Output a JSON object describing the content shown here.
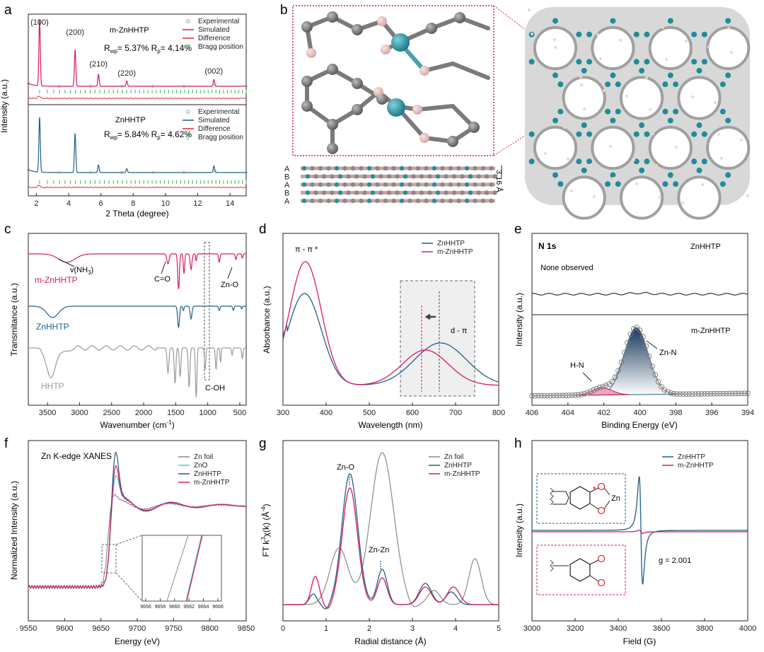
{
  "colors": {
    "pink": "#d81b60",
    "blue": "#1f5f8b",
    "gray": "#8a8a8a",
    "red": "#e8262a",
    "green": "#3cb44b",
    "cyan": "#56c3c6",
    "teal": "#2a8e9a",
    "black": "#222222"
  },
  "panels": {
    "a": {
      "letter": "a",
      "ylabel": "Intensity (a.u.)",
      "xlabel": "2 Theta (degree)",
      "xlim": [
        1.5,
        15
      ],
      "xticks": [
        "2",
        "4",
        "6",
        "8",
        "10",
        "12",
        "14"
      ],
      "top": {
        "name": "m-ZnHHTP",
        "rwp_text": "R",
        "rwp_sub": "wp",
        "rwp_val": "= 5.37% R",
        "rp_sub": "p",
        "rp_val": "= 4.14%",
        "peaks": [
          {
            "label": "(100)",
            "x": 2.2,
            "h": 1.0
          },
          {
            "label": "(200)",
            "x": 4.4,
            "h": 0.55
          },
          {
            "label": "(210)",
            "x": 5.85,
            "h": 0.18
          },
          {
            "label": "(220)",
            "x": 7.6,
            "h": 0.08
          },
          {
            "label": "(002)",
            "x": 13.0,
            "h": 0.1
          }
        ]
      },
      "bottom": {
        "name": "ZnHHTP",
        "rwp_text": "R",
        "rwp_sub": "wp",
        "rwp_val": "= 5.84% R",
        "rp_sub": "p",
        "rp_val": "= 4.62%",
        "peaks": [
          {
            "x": 2.2,
            "h": 1.0
          },
          {
            "x": 4.4,
            "h": 0.72
          },
          {
            "x": 5.85,
            "h": 0.14
          },
          {
            "x": 7.6,
            "h": 0.07
          },
          {
            "x": 13.0,
            "h": 0.12
          }
        ]
      },
      "legend": [
        "Experimental",
        "Simulated",
        "Difference",
        "Bragg position"
      ]
    },
    "b": {
      "letter": "b",
      "stack_labels": [
        "A",
        "B",
        "A",
        "B",
        "A"
      ],
      "spacing_label": "3.16 Å"
    },
    "c": {
      "letter": "c",
      "ylabel": "Transmitance (a.u.)",
      "xlabel": "Wavenumber (cm",
      "xlabel_sup": "-1",
      "xlabel_end": ")",
      "xticks": [
        "3500",
        "3000",
        "2500",
        "2000",
        "1500",
        "1000",
        "500"
      ],
      "series": [
        "m-ZnHHTP",
        "ZnHHTP",
        "HHTP"
      ],
      "annotations": [
        "v(NH",
        "3",
        ")",
        "C=O",
        "Zn-O",
        "C-OH"
      ]
    },
    "d": {
      "letter": "d",
      "ylabel": "Absorbance (a.u.)",
      "xlabel": "Wavelength (nm)",
      "xlim": [
        300,
        800
      ],
      "xticks": [
        "300",
        "400",
        "500",
        "600",
        "700",
        "800"
      ],
      "legend": [
        "ZnHHTP",
        "m-ZnHHTP"
      ],
      "annotations": [
        "π - π *",
        "d - π"
      ]
    },
    "e": {
      "letter": "e",
      "ylabel": "Intensity (a.u.)",
      "xlabel": "Binding Energy (eV)",
      "xlim": [
        406,
        394
      ],
      "xticks": [
        "406",
        "404",
        "402",
        "400",
        "398",
        "396",
        "394"
      ],
      "title": "N 1s",
      "top_name": "ZnHHTP",
      "none_text": "None observed",
      "bottom_name": "m-ZnHHTP",
      "peaks": [
        {
          "label": "Zn-N",
          "center": 400.2
        },
        {
          "label": "H-N",
          "center": 402.1
        }
      ]
    },
    "f": {
      "letter": "f",
      "ylabel": "Normalized Intensity (a.u.)",
      "xlabel": "Energy (eV)",
      "xlim": [
        9550,
        9850
      ],
      "xticks": [
        "9550",
        "9600",
        "9650",
        "9700",
        "9750",
        "9800",
        "9850"
      ],
      "title": "Zn K-edge XANES",
      "legend": [
        "Zn foil",
        "ZnO",
        "ZnHHTP",
        "m-ZnHHTP"
      ],
      "inset_ticks": [
        "9656",
        "9658",
        "9660",
        "9662",
        "9664",
        "9666"
      ]
    },
    "g": {
      "letter": "g",
      "ylabel": "FT k",
      "ylabel_sup": "3",
      "ylabel_mid": "χ(k) (Å",
      "ylabel_sup2": "-4",
      "ylabel_end": ")",
      "xlabel": "Radial distance (Å)",
      "xlim": [
        0,
        5
      ],
      "xticks": [
        "0",
        "1",
        "2",
        "3",
        "4",
        "5"
      ],
      "legend": [
        "Zn foil",
        "ZnHHTP",
        "m-ZnHHTP"
      ],
      "annotations": [
        "Zn-O",
        "Zn-Zn"
      ]
    },
    "h": {
      "letter": "h",
      "ylabel": "Intensity (a.u.)",
      "xlabel": "Field (G)",
      "xlim": [
        3000,
        4000
      ],
      "xticks": [
        "3000",
        "3200",
        "3400",
        "3600",
        "3800",
        "4000"
      ],
      "legend": [
        "ZnHHTP",
        "m-ZnHHTP"
      ],
      "g_label": "g = 2.001",
      "zn_label": "Zn"
    }
  },
  "chart_data": [
    {
      "panel": "a",
      "type": "line",
      "title": "",
      "xlabel": "2 Theta (degree)",
      "ylabel": "Intensity (a.u.)",
      "xlim": [
        1.5,
        15
      ],
      "series": [
        {
          "name": "m-ZnHHTP",
          "peaks_2theta": [
            2.2,
            4.4,
            5.85,
            7.6,
            13.0
          ],
          "rel_intensity": [
            1.0,
            0.55,
            0.18,
            0.08,
            0.1
          ]
        },
        {
          "name": "ZnHHTP",
          "peaks_2theta": [
            2.2,
            4.4,
            5.85,
            7.6,
            13.0
          ],
          "rel_intensity": [
            1.0,
            0.72,
            0.14,
            0.07,
            0.12
          ]
        }
      ]
    },
    {
      "panel": "c",
      "type": "line",
      "xlabel": "Wavenumber (cm-1)",
      "ylabel": "Transmitance (a.u.)",
      "xlim": [
        3800,
        400
      ],
      "series": [
        {
          "name": "m-ZnHHTP",
          "bands_cm-1": [
            3200,
            1620,
            1450,
            1260,
            600
          ]
        },
        {
          "name": "ZnHHTP",
          "bands_cm-1": [
            3450,
            1450,
            1260,
            600
          ]
        },
        {
          "name": "HHTP",
          "bands_cm-1": [
            3450,
            1620,
            1500,
            1250,
            1000
          ]
        }
      ]
    },
    {
      "panel": "d",
      "type": "line",
      "xlabel": "Wavelength (nm)",
      "ylabel": "Absorbance (a.u.)",
      "xlim": [
        300,
        800
      ],
      "series": [
        {
          "name": "ZnHHTP",
          "maxima_nm": [
            350,
            665
          ]
        },
        {
          "name": "m-ZnHHTP",
          "maxima_nm": [
            352,
            630
          ]
        }
      ]
    },
    {
      "panel": "e",
      "type": "line",
      "xlabel": "Binding Energy (eV)",
      "ylabel": "Intensity (a.u.)",
      "xlim": [
        406,
        394
      ],
      "series": [
        {
          "name": "m-ZnHHTP Zn-N",
          "center_eV": 400.2
        },
        {
          "name": "m-ZnHHTP H-N",
          "center_eV": 402.1
        }
      ]
    },
    {
      "panel": "f",
      "type": "line",
      "xlabel": "Energy (eV)",
      "ylabel": "Normalized Intensity (a.u.)",
      "xlim": [
        9550,
        9850
      ],
      "series": [
        {
          "name": "Zn foil"
        },
        {
          "name": "ZnO"
        },
        {
          "name": "ZnHHTP"
        },
        {
          "name": "m-ZnHHTP"
        }
      ],
      "edge_eV": 9662
    },
    {
      "panel": "g",
      "type": "line",
      "xlabel": "Radial distance (Å)",
      "ylabel": "FT k3χ(k) (Å-4)",
      "xlim": [
        0,
        5
      ],
      "series": [
        {
          "name": "Zn foil",
          "peaks_A": [
            1.3,
            2.3,
            4.4
          ]
        },
        {
          "name": "ZnHHTP",
          "peaks_A": [
            1.55,
            2.3
          ]
        },
        {
          "name": "m-ZnHHTP",
          "peaks_A": [
            1.55,
            2.3
          ]
        }
      ]
    },
    {
      "panel": "h",
      "type": "line",
      "xlabel": "Field (G)",
      "ylabel": "Intensity (a.u.)",
      "xlim": [
        3000,
        4000
      ],
      "series": [
        {
          "name": "ZnHHTP",
          "g_value": 2.001,
          "center_G": 3505
        },
        {
          "name": "m-ZnHHTP",
          "center_G": 3505
        }
      ]
    }
  ]
}
